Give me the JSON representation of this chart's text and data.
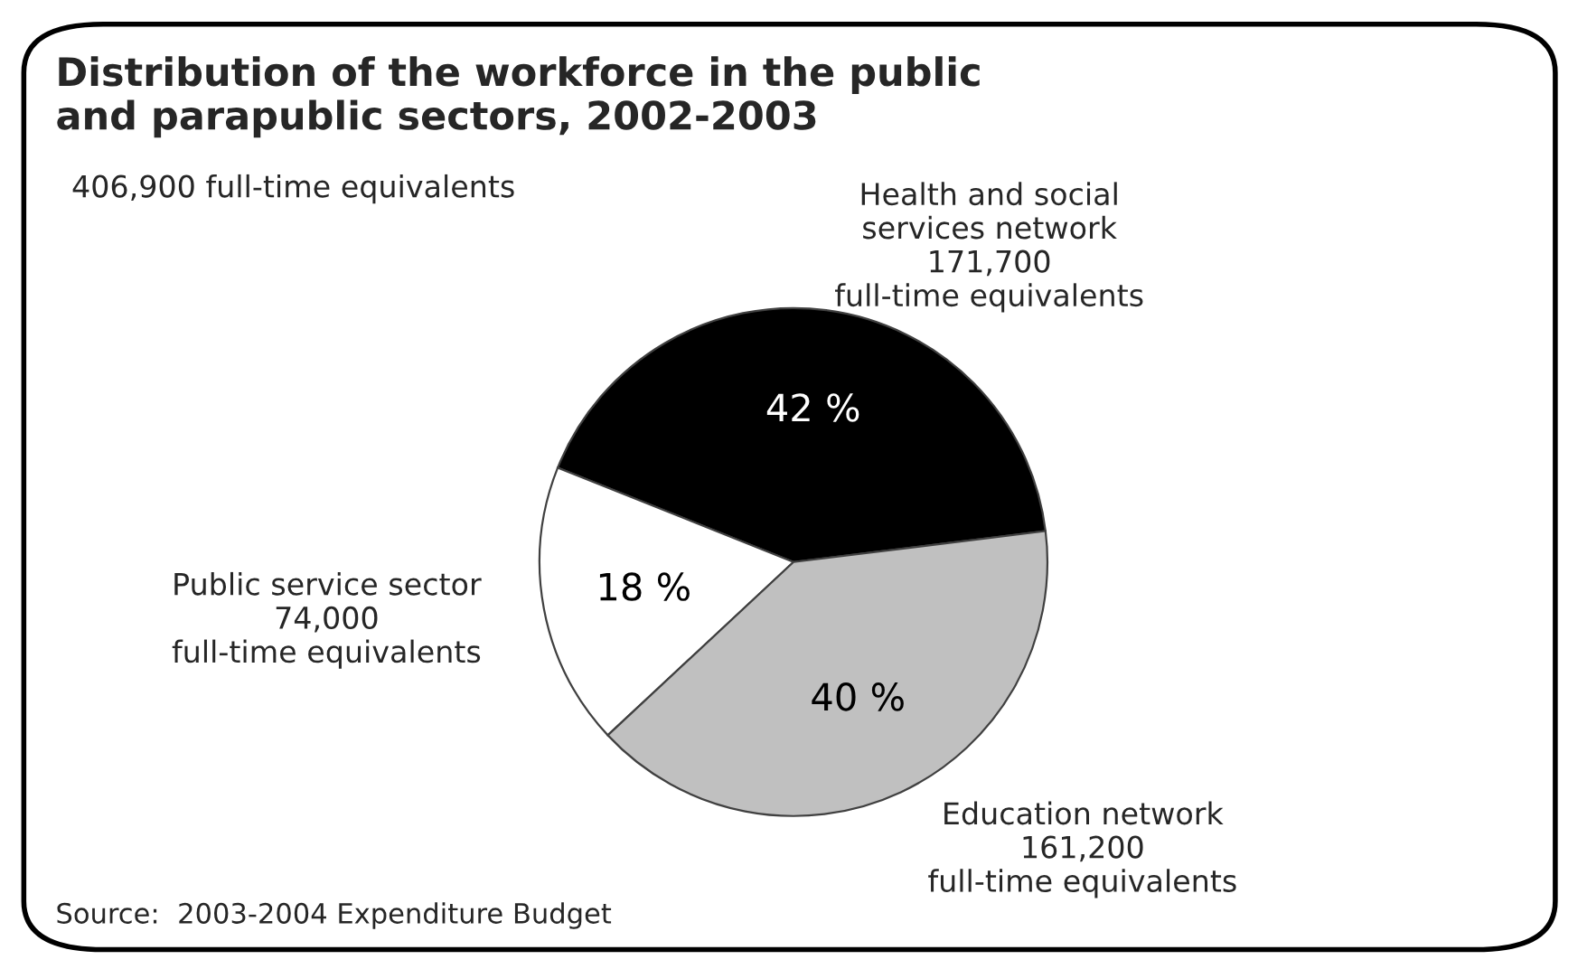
{
  "chart_data": {
    "type": "pie",
    "title": "Distribution of the workforce in the public\nand parapublic sectors, 2002-2003",
    "subtitle": "406,900 full-time equivalents",
    "categories": [
      "Health and social\nservices network\n171,700\nfull-time equivalents",
      "Public service sector\n74,000\nfull-time equivalents",
      "Education network\n161,200\nfull-time equivalents"
    ],
    "values": [
      42,
      18,
      40
    ],
    "value_labels": [
      "42 %",
      "18 %",
      "40 %"
    ],
    "colors": [
      "#000000",
      "#ffffff",
      "#c0c0c0"
    ],
    "annotations": [
      "Source:  2003-2004 Expenditure Budget"
    ],
    "legend": false
  }
}
